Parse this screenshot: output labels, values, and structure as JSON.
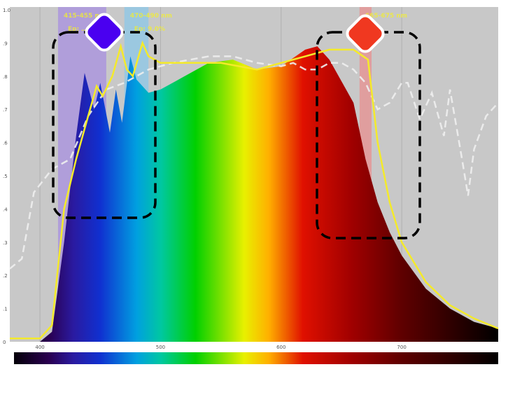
{
  "chart_data": {
    "type": "area",
    "title": "",
    "xlabel": "",
    "ylabel": "",
    "xlim": [
      375,
      780
    ],
    "ylim": [
      0,
      1.0
    ],
    "x_ticks": [
      "400",
      "500",
      "600",
      "700"
    ],
    "y_ticks": [
      ".1",
      ".2",
      ".3",
      ".4",
      ".5",
      ".6",
      ".7",
      ".8",
      ".9",
      "1.0"
    ],
    "grid": true,
    "background_color": "#c8c8c8",
    "series": [
      {
        "style": "spectrum-gradient-fill",
        "x": [
          400,
          410,
          420,
          430,
          437,
          445,
          450,
          458,
          463,
          468,
          475,
          480,
          490,
          500,
          520,
          540,
          560,
          580,
          600,
          620,
          630,
          640,
          660,
          670,
          680,
          690,
          700,
          720,
          740,
          760,
          780
        ],
        "y": [
          0,
          0.03,
          0.3,
          0.62,
          0.81,
          0.7,
          0.78,
          0.63,
          0.76,
          0.66,
          0.86,
          0.79,
          0.75,
          0.76,
          0.8,
          0.84,
          0.85,
          0.82,
          0.83,
          0.88,
          0.89,
          0.85,
          0.72,
          0.55,
          0.42,
          0.33,
          0.26,
          0.16,
          0.1,
          0.06,
          0.04
        ]
      },
      {
        "style": "line",
        "color": "#f4ea2a",
        "x": [
          375,
          400,
          410,
          420,
          430,
          440,
          447,
          452,
          460,
          467,
          472,
          477,
          485,
          490,
          500,
          520,
          550,
          580,
          600,
          620,
          640,
          660,
          672,
          680,
          690,
          700,
          720,
          740,
          760,
          780
        ],
        "y": [
          0.01,
          0.01,
          0.05,
          0.4,
          0.55,
          0.68,
          0.77,
          0.74,
          0.8,
          0.89,
          0.82,
          0.8,
          0.9,
          0.86,
          0.84,
          0.84,
          0.84,
          0.82,
          0.84,
          0.86,
          0.88,
          0.88,
          0.85,
          0.6,
          0.42,
          0.3,
          0.18,
          0.11,
          0.07,
          0.04
        ]
      },
      {
        "style": "dashed-line",
        "color": "#eeeeee",
        "x": [
          375,
          385,
          395,
          410,
          425,
          440,
          455,
          470,
          490,
          510,
          540,
          560,
          580,
          600,
          610,
          620,
          630,
          640,
          650,
          660,
          670,
          680,
          690,
          700,
          705,
          715,
          725,
          735,
          740,
          750,
          755,
          760,
          770,
          780
        ],
        "y": [
          0.22,
          0.25,
          0.45,
          0.52,
          0.55,
          0.68,
          0.76,
          0.78,
          0.82,
          0.84,
          0.86,
          0.86,
          0.84,
          0.83,
          0.84,
          0.82,
          0.82,
          0.84,
          0.84,
          0.82,
          0.78,
          0.7,
          0.72,
          0.78,
          0.78,
          0.67,
          0.75,
          0.62,
          0.76,
          0.55,
          0.44,
          0.58,
          0.68,
          0.72
        ]
      }
    ],
    "bands": [
      {
        "range": [
          415,
          455
        ],
        "color": "#a890e0",
        "label1": "415-455 nm",
        "label2": "Ep: …",
        "marker_color": "#4a00f0"
      },
      {
        "range": [
          470,
          490
        ],
        "color": "#8cc8e8",
        "label1": "470-490 nm",
        "label2": "Ep: 9.0%",
        "marker_color": null
      },
      {
        "range": [
          665,
          675
        ],
        "color": "#e89090",
        "label1": "665-675 nm",
        "label2": "…%",
        "marker_color": "#f03820"
      }
    ]
  }
}
